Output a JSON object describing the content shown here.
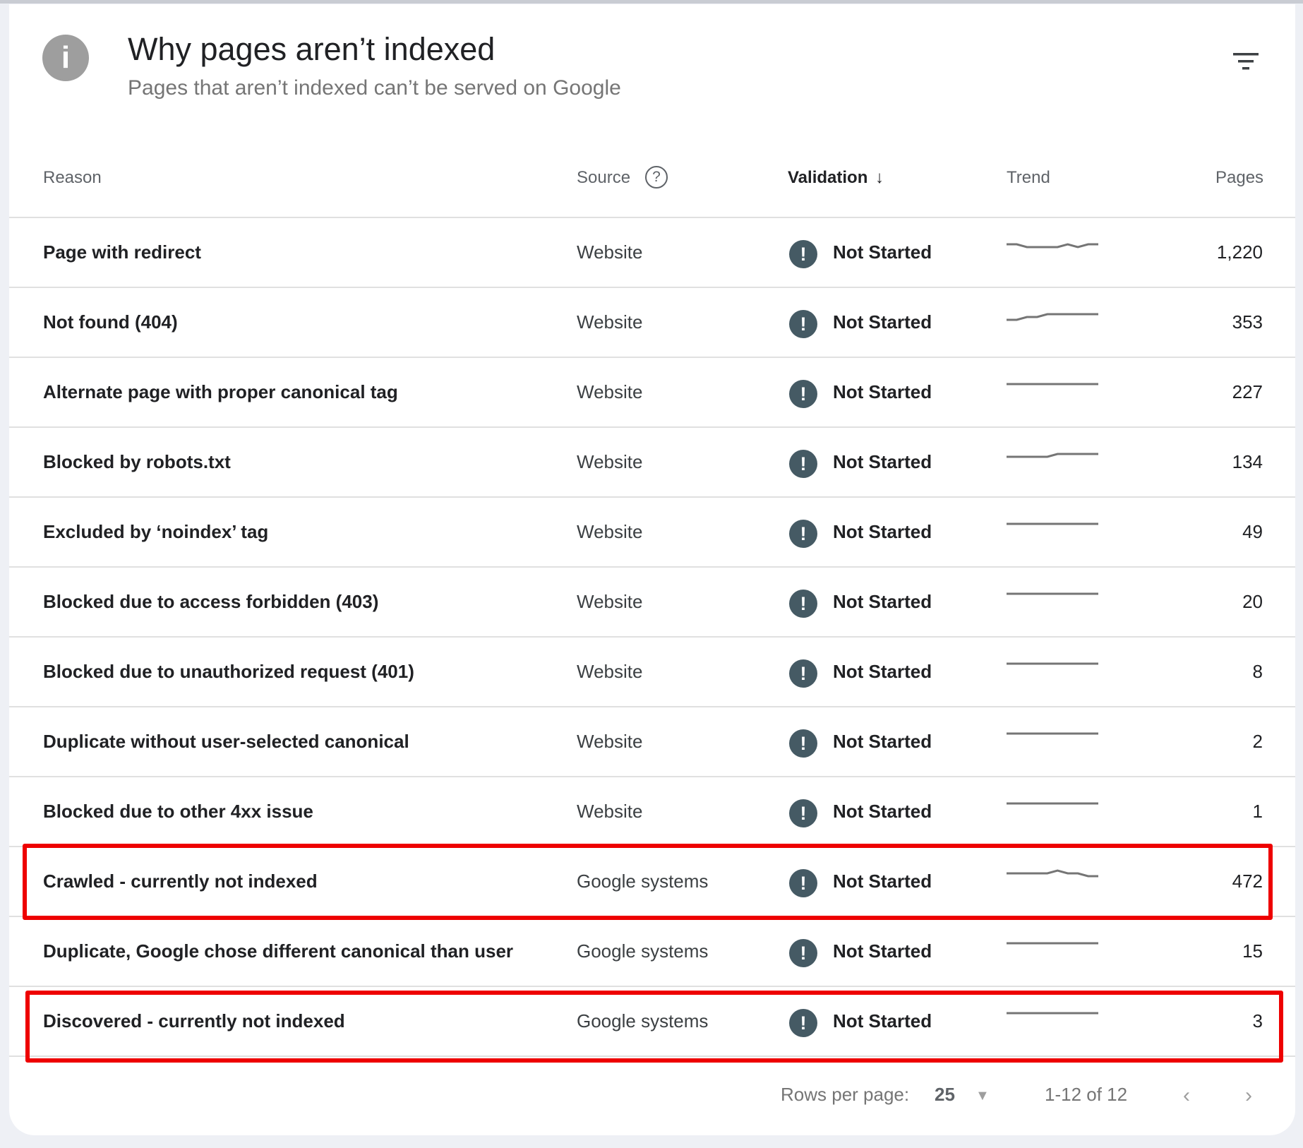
{
  "header": {
    "title": "Why pages aren’t indexed",
    "subtitle": "Pages that aren’t indexed can’t be served on Google",
    "info_icon": "info-icon",
    "filter_icon": "filter-icon"
  },
  "columns": {
    "reason": "Reason",
    "source": "Source",
    "validation": "Validation",
    "trend": "Trend",
    "pages": "Pages"
  },
  "rows": [
    {
      "reason": "Page with redirect",
      "source": "Website",
      "validation": "Not Started",
      "pages": "1,220",
      "trend": [
        5,
        5,
        4,
        4,
        4,
        4,
        5,
        4,
        5,
        5
      ]
    },
    {
      "reason": "Not found (404)",
      "source": "Website",
      "validation": "Not Started",
      "pages": "353",
      "trend": [
        3,
        3,
        4,
        4,
        5,
        5,
        5,
        5,
        5,
        5
      ]
    },
    {
      "reason": "Alternate page with proper canonical tag",
      "source": "Website",
      "validation": "Not Started",
      "pages": "227",
      "trend": [
        5,
        5,
        5,
        5,
        5,
        5,
        5,
        5,
        5,
        5
      ]
    },
    {
      "reason": "Blocked by robots.txt",
      "source": "Website",
      "validation": "Not Started",
      "pages": "134",
      "trend": [
        4,
        4,
        4,
        4,
        4,
        5,
        5,
        5,
        5,
        5
      ]
    },
    {
      "reason": "Excluded by ‘noindex’ tag",
      "source": "Website",
      "validation": "Not Started",
      "pages": "49",
      "trend": [
        5,
        5,
        5,
        5,
        5,
        5,
        5,
        5,
        5,
        5
      ]
    },
    {
      "reason": "Blocked due to access forbidden (403)",
      "source": "Website",
      "validation": "Not Started",
      "pages": "20",
      "trend": [
        5,
        5,
        5,
        5,
        5,
        5,
        5,
        5,
        5,
        5
      ]
    },
    {
      "reason": "Blocked due to unauthorized request (401)",
      "source": "Website",
      "validation": "Not Started",
      "pages": "8",
      "trend": [
        5,
        5,
        5,
        5,
        5,
        5,
        5,
        5,
        5,
        5
      ]
    },
    {
      "reason": "Duplicate without user-selected canonical",
      "source": "Website",
      "validation": "Not Started",
      "pages": "2",
      "trend": [
        5,
        5,
        5,
        5,
        5,
        5,
        5,
        5,
        5,
        5
      ]
    },
    {
      "reason": "Blocked due to other 4xx issue",
      "source": "Website",
      "validation": "Not Started",
      "pages": "1",
      "trend": [
        5,
        5,
        5,
        5,
        5,
        5,
        5,
        5,
        5,
        5
      ]
    },
    {
      "reason": "Crawled - currently not indexed",
      "source": "Google systems",
      "validation": "Not Started",
      "pages": "472",
      "trend": [
        5,
        5,
        5,
        5,
        5,
        6,
        5,
        5,
        4,
        4
      ]
    },
    {
      "reason": "Duplicate, Google chose different canonical than user",
      "source": "Google systems",
      "validation": "Not Started",
      "pages": "15",
      "trend": [
        5,
        5,
        5,
        5,
        5,
        5,
        5,
        5,
        5,
        5
      ]
    },
    {
      "reason": "Discovered - currently not indexed",
      "source": "Google systems",
      "validation": "Not Started",
      "pages": "3",
      "trend": [
        5,
        5,
        5,
        5,
        5,
        5,
        5,
        5,
        5,
        5
      ]
    }
  ],
  "highlighted_rows": [
    9,
    11
  ],
  "highlight_color": "#ee0000",
  "footer": {
    "rows_per_page_label": "Rows per page:",
    "rows_per_page": "25",
    "range": "1-12 of 12"
  }
}
